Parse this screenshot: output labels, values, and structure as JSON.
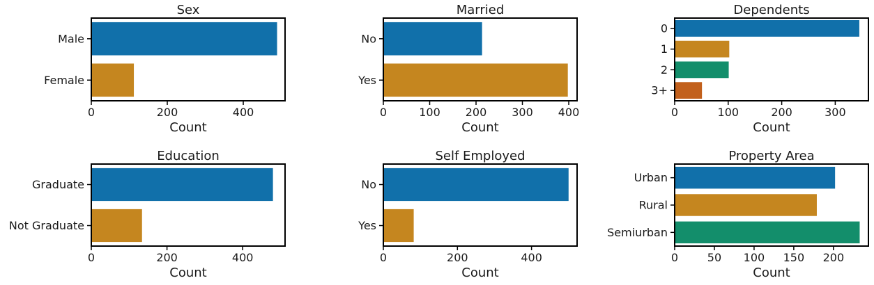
{
  "colors": [
    "#1170aa",
    "#c5861f",
    "#138e6b",
    "#c2601c"
  ],
  "chart_data": [
    {
      "type": "bar",
      "orientation": "horizontal",
      "title": "Sex",
      "xlabel": "Count",
      "categories": [
        "Male",
        "Female"
      ],
      "values": [
        489,
        112
      ],
      "xlim": [
        0,
        510
      ],
      "xticks": [
        0,
        200,
        400
      ]
    },
    {
      "type": "bar",
      "orientation": "horizontal",
      "title": "Married",
      "xlabel": "Count",
      "categories": [
        "No",
        "Yes"
      ],
      "values": [
        213,
        398
      ],
      "xlim": [
        0,
        418
      ],
      "xticks": [
        0,
        100,
        200,
        300,
        400
      ]
    },
    {
      "type": "bar",
      "orientation": "horizontal",
      "title": "Dependents",
      "xlabel": "Count",
      "categories": [
        "0",
        "1",
        "2",
        "3+"
      ],
      "values": [
        345,
        102,
        101,
        51
      ],
      "xlim": [
        0,
        362
      ],
      "xticks": [
        0,
        100,
        200,
        300
      ]
    },
    {
      "type": "bar",
      "orientation": "horizontal",
      "title": "Education",
      "xlabel": "Count",
      "categories": [
        "Graduate",
        "Not Graduate"
      ],
      "values": [
        480,
        134
      ],
      "xlim": [
        0,
        512
      ],
      "xticks": [
        0,
        200,
        400
      ]
    },
    {
      "type": "bar",
      "orientation": "horizontal",
      "title": "Self Employed",
      "xlabel": "Count",
      "categories": [
        "No",
        "Yes"
      ],
      "values": [
        500,
        82
      ],
      "xlim": [
        0,
        523
      ],
      "xticks": [
        0,
        200,
        400
      ]
    },
    {
      "type": "bar",
      "orientation": "horizontal",
      "title": "Property Area",
      "xlabel": "Count",
      "categories": [
        "Urban",
        "Rural",
        "Semiurban"
      ],
      "values": [
        202,
        179,
        233
      ],
      "xlim": [
        0,
        244
      ],
      "xticks": [
        0,
        50,
        100,
        150,
        200
      ]
    }
  ]
}
